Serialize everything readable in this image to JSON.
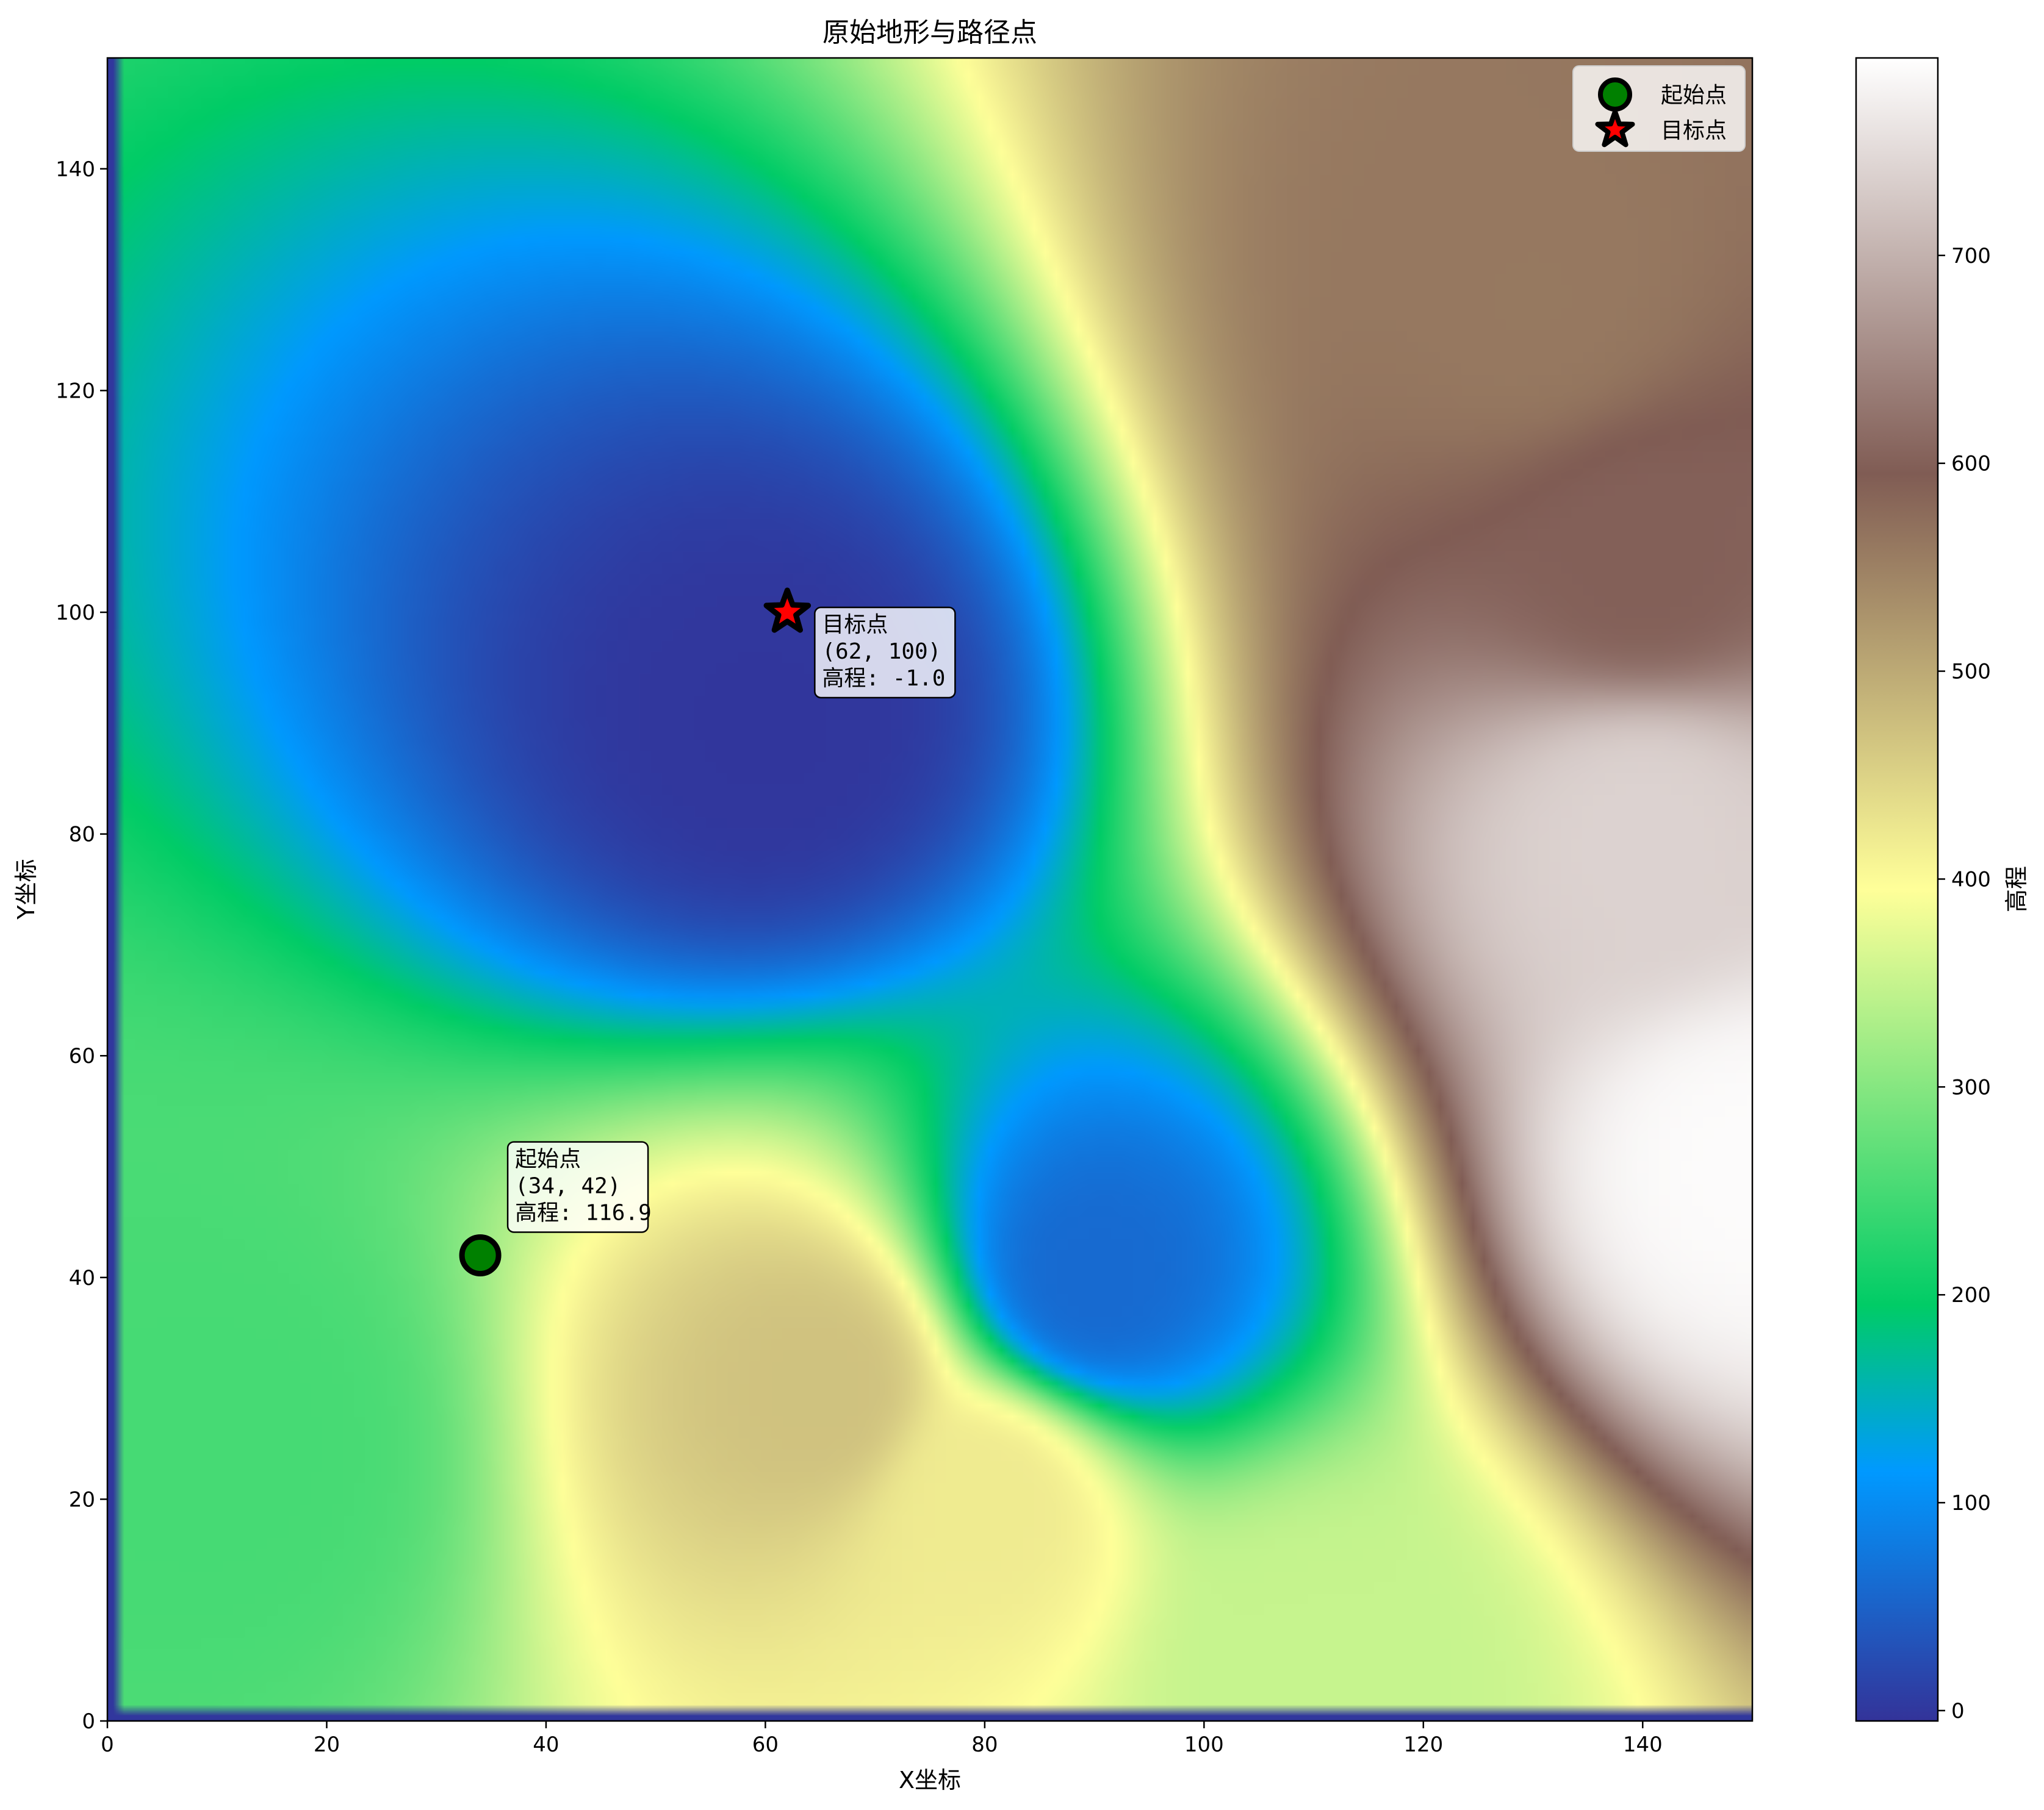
{
  "chart_data": {
    "type": "heatmap",
    "title": "原始地形与路径点",
    "xlabel": "X坐标",
    "ylabel": "Y坐标",
    "xlim": [
      0,
      150
    ],
    "ylim": [
      0,
      150
    ],
    "x_ticks": [
      0,
      20,
      40,
      60,
      80,
      100,
      120,
      140
    ],
    "y_ticks": [
      0,
      20,
      40,
      60,
      80,
      100,
      120,
      140
    ],
    "colormap": "terrain",
    "colorbar": {
      "label": "高程",
      "range": [
        -5,
        795
      ],
      "ticks": [
        0,
        100,
        200,
        300,
        400,
        500,
        600,
        700
      ]
    },
    "terrain_features": [
      {
        "x": 130,
        "y": 128,
        "elevation": 560
      },
      {
        "x": 140,
        "y": 80,
        "elevation": 740
      },
      {
        "x": 150,
        "y": 50,
        "elevation": 790
      },
      {
        "x": 140,
        "y": 105,
        "elevation": 600
      },
      {
        "x": 65,
        "y": 30,
        "elevation": 470
      },
      {
        "x": 80,
        "y": 20,
        "elevation": 420
      },
      {
        "x": 10,
        "y": 25,
        "elevation": 250
      },
      {
        "x": 110,
        "y": 5,
        "elevation": 350
      },
      {
        "x": 60,
        "y": 90,
        "elevation": -1
      },
      {
        "x": 90,
        "y": 40,
        "elevation": 60
      }
    ],
    "points": [
      {
        "name": "起始点",
        "x": 34,
        "y": 42,
        "elevation": 116.9,
        "marker": "circle",
        "color": "#008000",
        "annotation": [
          "起始点",
          "(34, 42)",
          "高程: 116.9"
        ]
      },
      {
        "name": "目标点",
        "x": 62,
        "y": 100,
        "elevation": -1.0,
        "marker": "star",
        "color": "#ff0000",
        "annotation": [
          "目标点",
          "(62, 100)",
          "高程: -1.0"
        ]
      }
    ],
    "legend": {
      "position": "top-right",
      "entries": [
        "起始点",
        "目标点"
      ]
    }
  }
}
